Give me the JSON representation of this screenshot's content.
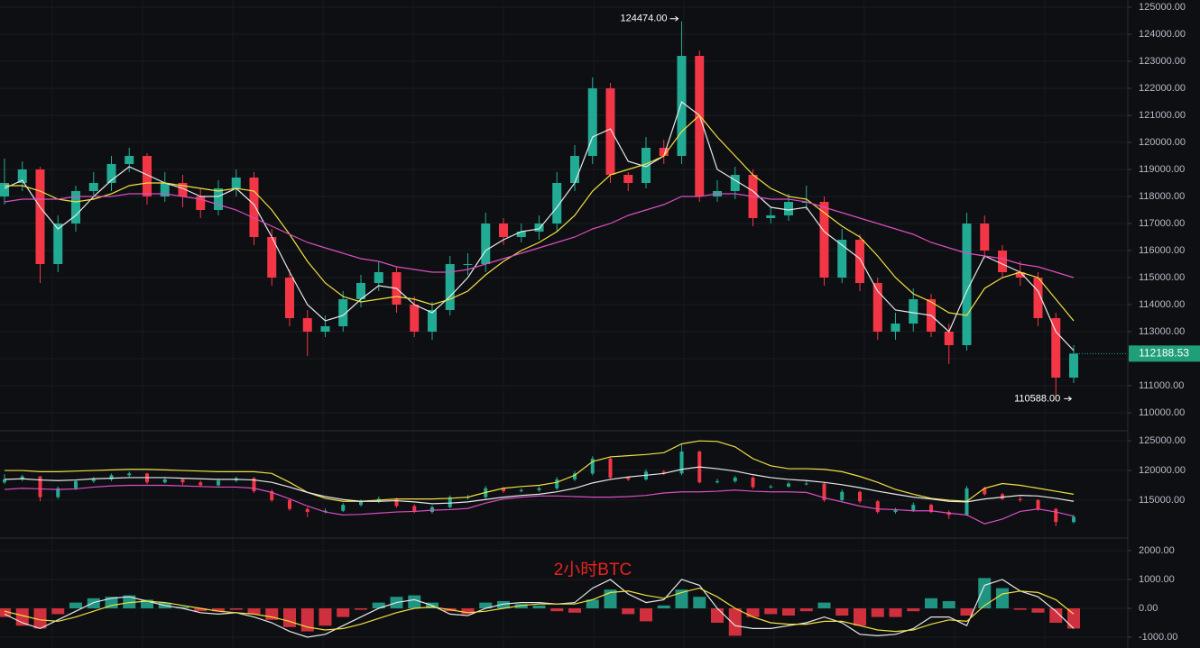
{
  "chart_data": [
    {
      "type": "candlestick",
      "ylim": [
        109333,
        125267
      ],
      "yticks": [
        {
          "value": 110000,
          "label": "110000.00"
        },
        {
          "value": 111000,
          "label": "111000.00"
        },
        {
          "value": 112000,
          "label": "112000.00"
        },
        {
          "value": 113000,
          "label": "113000.00"
        },
        {
          "value": 114000,
          "label": "114000.00"
        },
        {
          "value": 115000,
          "label": "115000.00"
        },
        {
          "value": 116000,
          "label": "116000.00"
        },
        {
          "value": 117000,
          "label": "117000.00"
        },
        {
          "value": 118000,
          "label": "118000.00"
        },
        {
          "value": 119000,
          "label": "119000.00"
        },
        {
          "value": 120000,
          "label": "120000.00"
        },
        {
          "value": 121000,
          "label": "121000.00"
        },
        {
          "value": 122000,
          "label": "122000.00"
        },
        {
          "value": 123000,
          "label": "123000.00"
        },
        {
          "value": 124000,
          "label": "124000.00"
        },
        {
          "value": 125000,
          "label": "125000.00"
        }
      ],
      "grid": true,
      "up_color": "#22ab94",
      "down_color": "#f23645",
      "open": [
        118000,
        118500,
        119000,
        115500,
        117000,
        118200,
        118500,
        119200,
        119500,
        118000,
        118500,
        118000,
        117500,
        118300,
        118700,
        116500,
        115000,
        113500,
        113000,
        113200,
        114200,
        114800,
        115200,
        114000,
        113000,
        113800,
        115500,
        115500,
        117000,
        116500,
        116700,
        117000,
        118500,
        119500,
        122000,
        118800,
        118500,
        119800,
        119500,
        123200,
        118000,
        118200,
        118800,
        117200,
        117300,
        117800,
        117800,
        115000,
        116400,
        114800,
        113000,
        113300,
        114200,
        113000,
        112500,
        117000,
        116000,
        115200,
        115000,
        113500,
        111300
      ],
      "high": [
        119400,
        119300,
        119100,
        117300,
        118400,
        118900,
        119500,
        119800,
        119600,
        118900,
        118800,
        118300,
        118600,
        119000,
        118900,
        116800,
        115300,
        113800,
        113600,
        114500,
        115100,
        115600,
        115400,
        114300,
        114100,
        115800,
        115900,
        117400,
        117200,
        117000,
        117300,
        118900,
        119900,
        122400,
        122200,
        118900,
        120200,
        120100,
        124474,
        123400,
        118600,
        119100,
        119000,
        117600,
        118100,
        118400,
        118000,
        116800,
        116600,
        115000,
        113700,
        114600,
        114400,
        113300,
        117400,
        117300,
        116200,
        115600,
        115200,
        113700,
        112500
      ],
      "low": [
        117700,
        118200,
        114800,
        115200,
        116700,
        117900,
        118200,
        118900,
        117700,
        117800,
        117600,
        117200,
        117300,
        118000,
        116200,
        114700,
        113200,
        112100,
        112800,
        113000,
        113900,
        114500,
        113700,
        112800,
        112700,
        113600,
        115100,
        115200,
        116200,
        116300,
        116400,
        116700,
        118200,
        119200,
        118500,
        118200,
        118300,
        119200,
        119200,
        117800,
        117800,
        117900,
        116900,
        117000,
        117100,
        117500,
        114700,
        114800,
        114500,
        112700,
        112700,
        113000,
        112800,
        111800,
        112300,
        115700,
        115000,
        114700,
        113200,
        110588,
        111100
      ],
      "close": [
        118500,
        119000,
        115500,
        117000,
        118200,
        118500,
        119200,
        119500,
        118000,
        118500,
        118000,
        117500,
        118300,
        118700,
        116500,
        115000,
        113500,
        113000,
        113200,
        114200,
        114800,
        115200,
        114000,
        113000,
        113800,
        115500,
        115500,
        117000,
        116500,
        116700,
        117000,
        118500,
        119500,
        122000,
        118800,
        118500,
        119800,
        119500,
        123200,
        118000,
        118200,
        118800,
        117200,
        117300,
        117800,
        117800,
        115000,
        116400,
        114800,
        113000,
        113300,
        114200,
        113000,
        112500,
        117000,
        116000,
        115200,
        115000,
        113500,
        111300,
        112188.53
      ],
      "series": [
        {
          "color": "#e8e8e8",
          "values": [
            118300,
            118600,
            117600,
            116800,
            117300,
            118000,
            118600,
            119100,
            118800,
            118500,
            118300,
            118000,
            118000,
            118300,
            117700,
            116500,
            115200,
            114000,
            113400,
            113600,
            114200,
            114700,
            114600,
            114000,
            113700,
            114300,
            115000,
            116000,
            116400,
            116700,
            116800,
            117600,
            118500,
            120200,
            120500,
            119300,
            119100,
            119500,
            121500,
            121000,
            119000,
            118600,
            118200,
            117600,
            117500,
            117600,
            116700,
            116200,
            115700,
            114500,
            113800,
            113700,
            113600,
            113000,
            114500,
            115800,
            115500,
            115200,
            114500,
            113000,
            112300
          ]
        },
        {
          "color": "#f0e040",
          "values": [
            118400,
            118400,
            118200,
            117900,
            117800,
            117900,
            118100,
            118400,
            118500,
            118500,
            118400,
            118300,
            118200,
            118300,
            118200,
            117500,
            116600,
            115600,
            114800,
            114300,
            114100,
            114200,
            114300,
            114200,
            114000,
            114200,
            114500,
            115100,
            115600,
            116000,
            116300,
            116700,
            117300,
            118200,
            118800,
            119000,
            119200,
            119500,
            120400,
            121000,
            120200,
            119500,
            118800,
            118300,
            118000,
            117900,
            117400,
            116900,
            116500,
            115800,
            115000,
            114400,
            114100,
            113700,
            113600,
            114600,
            115000,
            115200,
            115000,
            114200,
            113400
          ]
        },
        {
          "color": "#d94fc0",
          "values": [
            117800,
            117900,
            117900,
            117900,
            118000,
            118000,
            118000,
            118100,
            118100,
            118100,
            118000,
            117900,
            117700,
            117500,
            117200,
            116900,
            116600,
            116300,
            116100,
            115900,
            115700,
            115600,
            115400,
            115300,
            115200,
            115200,
            115300,
            115500,
            115700,
            115900,
            116100,
            116300,
            116500,
            116800,
            117000,
            117300,
            117500,
            117700,
            118000,
            118000,
            118100,
            118100,
            118000,
            117900,
            117900,
            117800,
            117600,
            117400,
            117200,
            117000,
            116800,
            116600,
            116300,
            116100,
            115900,
            115800,
            115700,
            115500,
            115400,
            115200,
            115000
          ]
        }
      ],
      "max_label": "124474.00",
      "min_label": "110588.00",
      "last_label": "112188.53"
    },
    {
      "type": "bands",
      "ylim": [
        108600,
        126700
      ],
      "yticks": [
        {
          "value": 115000,
          "label": "115000.00"
        },
        {
          "value": 120000,
          "label": "120000.00"
        },
        {
          "value": 125000,
          "label": "125000.00"
        }
      ],
      "grid": true,
      "series": [
        {
          "color": "#f0e040",
          "values": [
            120000,
            120000,
            119800,
            119800,
            119900,
            120000,
            120100,
            120200,
            120200,
            120100,
            120000,
            119900,
            119800,
            119800,
            119800,
            119500,
            118000,
            116300,
            115300,
            114800,
            114800,
            115000,
            115200,
            115200,
            115200,
            115300,
            115500,
            116300,
            117000,
            117300,
            117500,
            118000,
            119200,
            121500,
            122300,
            122500,
            122700,
            123000,
            124500,
            125000,
            124900,
            124000,
            122000,
            120800,
            120300,
            120300,
            120200,
            119800,
            119000,
            118000,
            116800,
            116000,
            115300,
            115000,
            114800,
            117000,
            117800,
            117500,
            117000,
            116500,
            116000
          ]
        },
        {
          "color": "#e8e8e8",
          "values": [
            118500,
            118600,
            118400,
            118300,
            118400,
            118600,
            118700,
            118800,
            118800,
            118800,
            118700,
            118600,
            118500,
            118500,
            118400,
            118000,
            117200,
            116300,
            115600,
            115100,
            114800,
            114800,
            114900,
            114700,
            114400,
            114500,
            114700,
            115100,
            115500,
            115800,
            116000,
            116400,
            117000,
            117900,
            118500,
            118900,
            119200,
            119500,
            120200,
            120600,
            120300,
            119900,
            119300,
            118800,
            118500,
            118300,
            118000,
            117600,
            117100,
            116500,
            116000,
            115500,
            115200,
            114800,
            114700,
            115200,
            115500,
            115800,
            115700,
            115300,
            114800
          ]
        },
        {
          "color": "#d94fc0",
          "values": [
            116800,
            117000,
            116900,
            116800,
            116900,
            117200,
            117400,
            117500,
            117500,
            117500,
            117400,
            117300,
            117200,
            117200,
            117000,
            116300,
            115200,
            114000,
            113000,
            112500,
            112600,
            112800,
            113000,
            113100,
            113300,
            113400,
            113600,
            114500,
            115200,
            115500,
            115700,
            115700,
            115600,
            115500,
            115500,
            115600,
            115800,
            116200,
            116400,
            116400,
            116500,
            116700,
            116500,
            116400,
            116400,
            116300,
            115400,
            114700,
            114000,
            113500,
            113400,
            113200,
            113200,
            112800,
            112500,
            111000,
            111800,
            113100,
            113500,
            113000,
            112300
          ]
        }
      ]
    },
    {
      "type": "macd",
      "title": "2小时BTC",
      "ylim": [
        -1375,
        2437
      ],
      "yticks": [
        {
          "value": -1000,
          "label": "-1000.00"
        },
        {
          "value": 0,
          "label": "0.00"
        },
        {
          "value": 1000,
          "label": "1000.00"
        },
        {
          "value": 2000,
          "label": "2000.00"
        }
      ],
      "grid": true,
      "up_color": "#22ab94",
      "down_color": "#f23645",
      "values": [
        -300,
        -600,
        -700,
        -200,
        200,
        350,
        400,
        450,
        300,
        200,
        50,
        -100,
        -100,
        -50,
        -200,
        -400,
        -650,
        -800,
        -600,
        -300,
        -50,
        200,
        400,
        450,
        200,
        -100,
        -200,
        200,
        250,
        150,
        100,
        -100,
        -150,
        300,
        650,
        -200,
        -450,
        100,
        650,
        400,
        -500,
        -950,
        -300,
        -200,
        -250,
        -100,
        200,
        -250,
        -600,
        -300,
        -300,
        -100,
        350,
        250,
        -250,
        1050,
        700,
        -50,
        -150,
        -500,
        -700
      ],
      "series": [
        {
          "color": "#e8e8e8",
          "values": [
            -200,
            -500,
            -700,
            -400,
            -100,
            200,
            350,
            400,
            250,
            100,
            0,
            -150,
            -200,
            -150,
            -300,
            -500,
            -800,
            -1000,
            -900,
            -600,
            -300,
            0,
            200,
            300,
            100,
            -200,
            -250,
            0,
            150,
            200,
            200,
            150,
            200,
            700,
            1000,
            500,
            200,
            300,
            1000,
            800,
            0,
            -600,
            -700,
            -700,
            -600,
            -500,
            -300,
            -500,
            -900,
            -950,
            -900,
            -700,
            -300,
            -300,
            -600,
            800,
            1000,
            600,
            400,
            -100,
            -700
          ]
        },
        {
          "color": "#f0e040",
          "values": [
            -100,
            -250,
            -400,
            -450,
            -300,
            -100,
            100,
            200,
            250,
            200,
            100,
            0,
            -100,
            -150,
            -200,
            -300,
            -450,
            -650,
            -750,
            -700,
            -550,
            -350,
            -150,
            0,
            50,
            -50,
            -150,
            -100,
            0,
            100,
            150,
            150,
            150,
            300,
            550,
            600,
            450,
            350,
            550,
            700,
            400,
            0,
            -300,
            -500,
            -550,
            -550,
            -450,
            -450,
            -600,
            -750,
            -800,
            -750,
            -550,
            -400,
            -450,
            100,
            500,
            600,
            550,
            300,
            -200
          ]
        }
      ]
    }
  ]
}
